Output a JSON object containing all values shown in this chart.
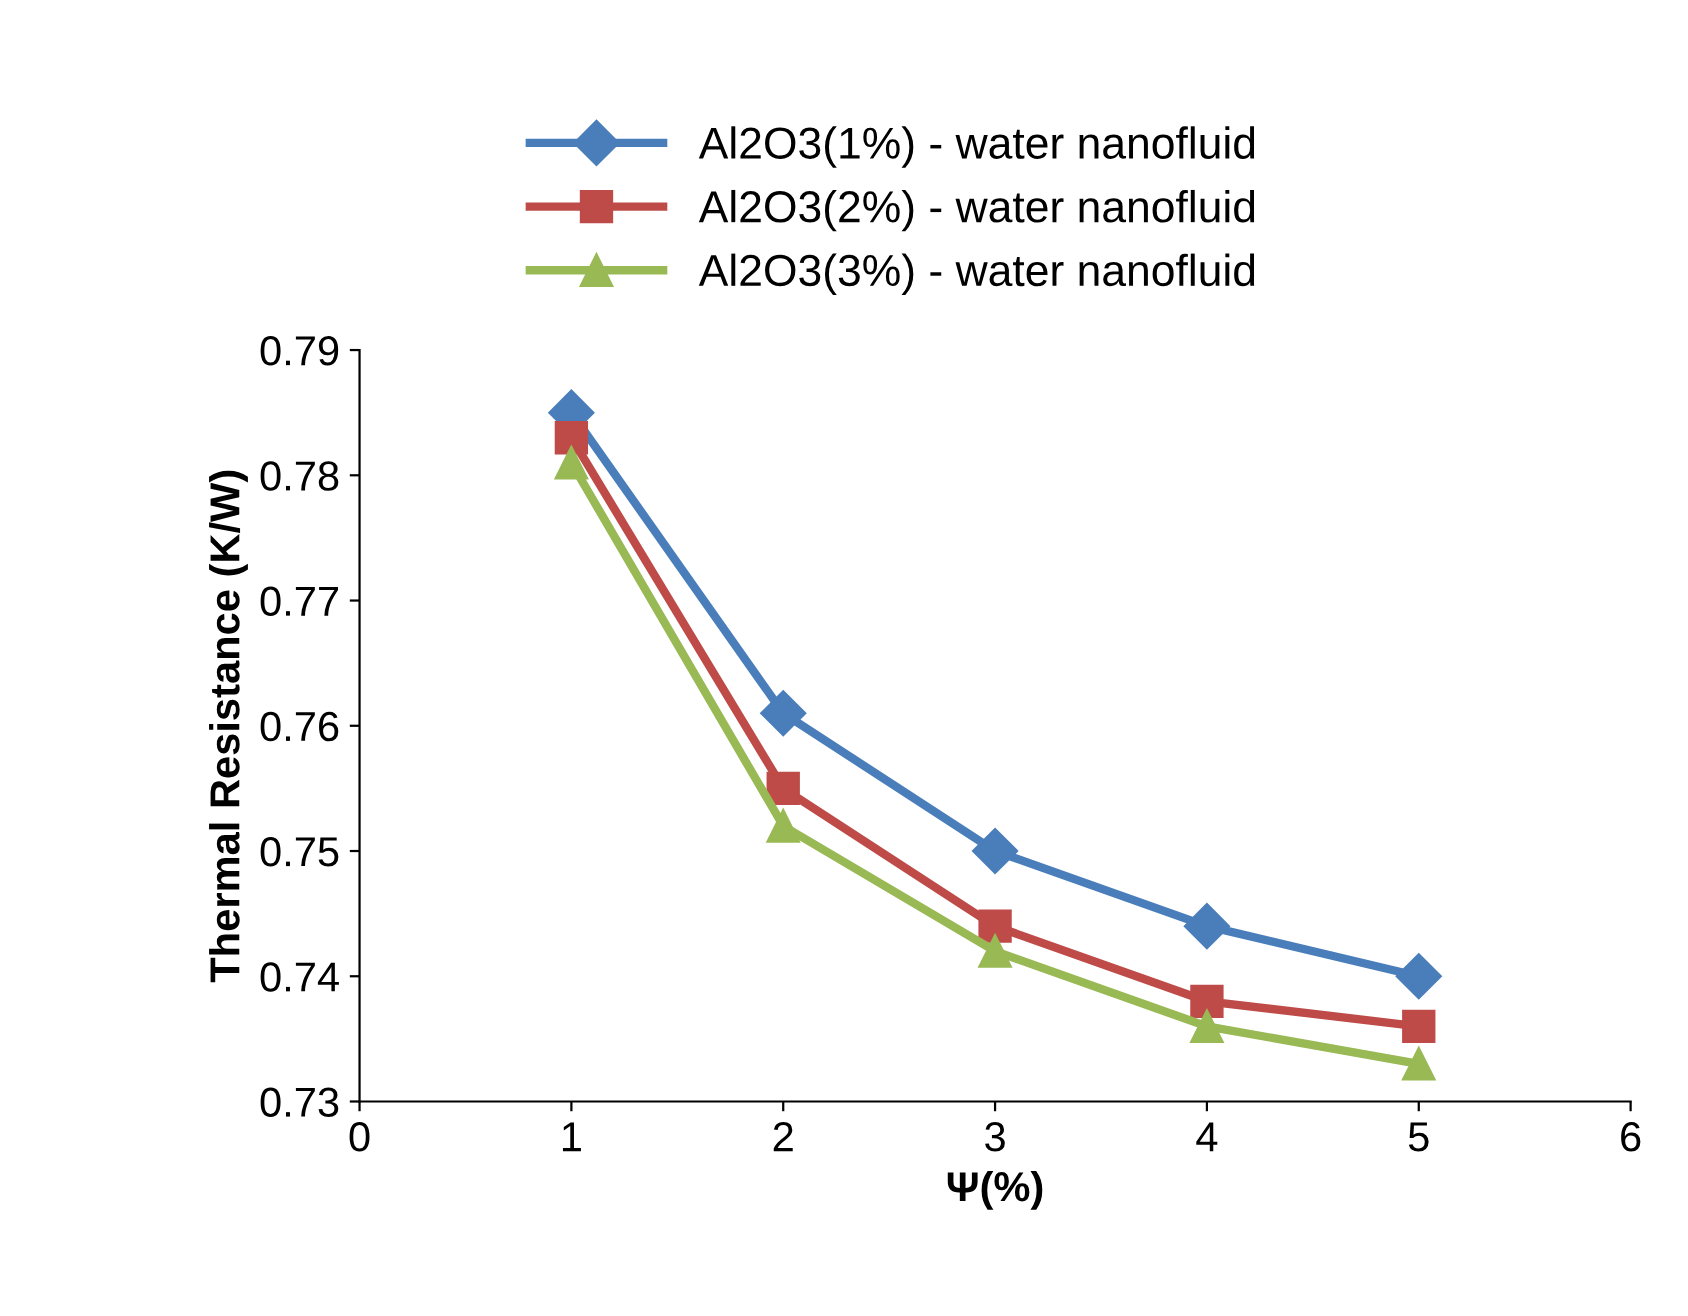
{
  "chart_data": {
    "type": "line",
    "xlabel": "Ψ(%)",
    "ylabel": "Thermal Resistance (K/W)",
    "x": [
      1,
      2,
      3,
      4,
      5
    ],
    "series": [
      {
        "name": "Al2O3(1%) - water nanofluid",
        "color": "#4a7ebb",
        "marker": "diamond",
        "values": [
          0.785,
          0.761,
          0.75,
          0.744,
          0.74
        ]
      },
      {
        "name": "Al2O3(2%) - water nanofluid",
        "color": "#be4b48",
        "marker": "square",
        "values": [
          0.783,
          0.755,
          0.744,
          0.738,
          0.736
        ]
      },
      {
        "name": "Al2O3(3%) - water nanofluid",
        "color": "#98b954",
        "marker": "triangle",
        "values": [
          0.781,
          0.752,
          0.742,
          0.736,
          0.733
        ]
      }
    ],
    "xlim": [
      0,
      6
    ],
    "xticks": [
      0,
      1,
      2,
      3,
      4,
      5,
      6
    ],
    "ylim": [
      0.73,
      0.79
    ],
    "yticks": [
      0.73,
      0.74,
      0.75,
      0.76,
      0.77,
      0.78,
      0.79
    ],
    "grid": false,
    "legend": "top",
    "line_style": "solid"
  }
}
